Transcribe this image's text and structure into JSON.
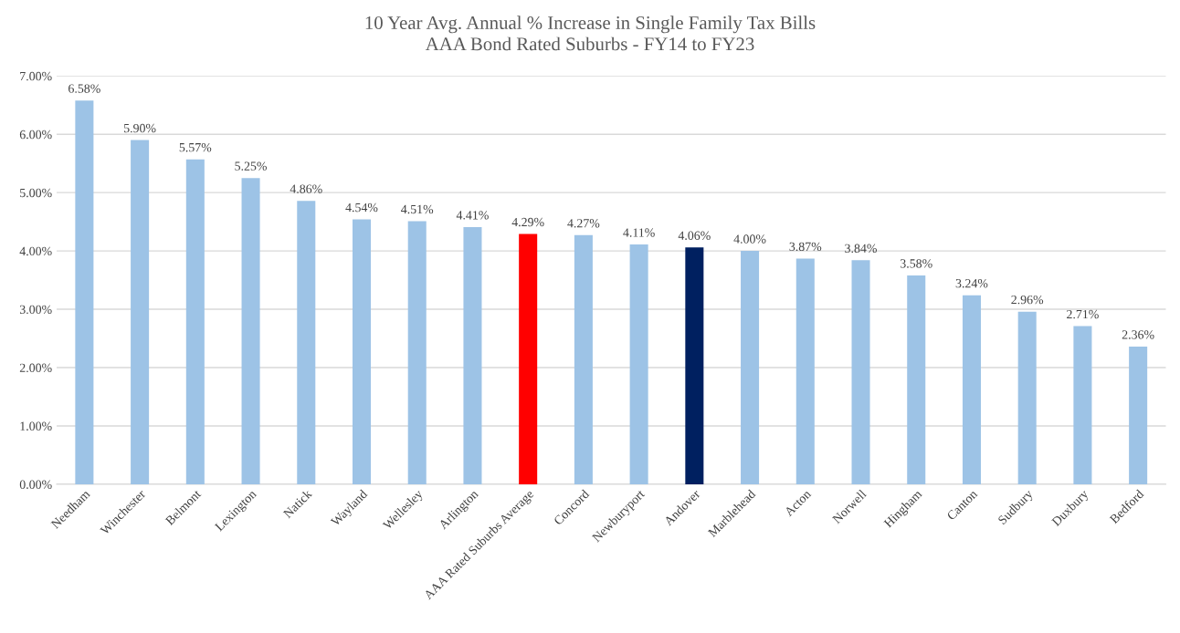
{
  "chart_data": {
    "type": "bar",
    "title": "10 Year Avg. Annual % Increase in Single Family Tax Bills\nAAA Bond Rated Suburbs - FY14 to FY23",
    "categories": [
      "Needham",
      "Winchester",
      "Belmont",
      "Lexington",
      "Natick",
      "Wayland",
      "Wellesley",
      "Arlington",
      "AAA Rated Suburbs Average",
      "Concord",
      "Newburyport",
      "Andover",
      "Marblehead",
      "Acton",
      "Norwell",
      "Hingham",
      "Canton",
      "Sudbury",
      "Duxbury",
      "Bedford"
    ],
    "values": [
      6.58,
      5.9,
      5.57,
      5.25,
      4.86,
      4.54,
      4.51,
      4.41,
      4.29,
      4.27,
      4.11,
      4.06,
      4.0,
      3.87,
      3.84,
      3.58,
      3.24,
      2.96,
      2.71,
      2.36
    ],
    "value_labels": [
      "6.58%",
      "5.90%",
      "5.57%",
      "5.25%",
      "4.86%",
      "4.54%",
      "4.51%",
      "4.41%",
      "4.29%",
      "4.27%",
      "4.11%",
      "4.06%",
      "4.00%",
      "3.87%",
      "3.84%",
      "3.58%",
      "3.24%",
      "2.96%",
      "2.71%",
      "2.36%"
    ],
    "colors": [
      "#9dc3e6",
      "#9dc3e6",
      "#9dc3e6",
      "#9dc3e6",
      "#9dc3e6",
      "#9dc3e6",
      "#9dc3e6",
      "#9dc3e6",
      "#ff0000",
      "#9dc3e6",
      "#9dc3e6",
      "#002060",
      "#9dc3e6",
      "#9dc3e6",
      "#9dc3e6",
      "#9dc3e6",
      "#9dc3e6",
      "#9dc3e6",
      "#9dc3e6",
      "#9dc3e6"
    ],
    "ylim": [
      0,
      7
    ],
    "yticks": [
      {
        "value": 0,
        "label": "0.00%"
      },
      {
        "value": 1,
        "label": "1.00%"
      },
      {
        "value": 2,
        "label": "2.00%"
      },
      {
        "value": 3,
        "label": "3.00%"
      },
      {
        "value": 4,
        "label": "4.00%"
      },
      {
        "value": 5,
        "label": "5.00%"
      },
      {
        "value": 6,
        "label": "6.00%"
      },
      {
        "value": 7,
        "label": "7.00%"
      }
    ],
    "grid": "y",
    "legend": false
  }
}
